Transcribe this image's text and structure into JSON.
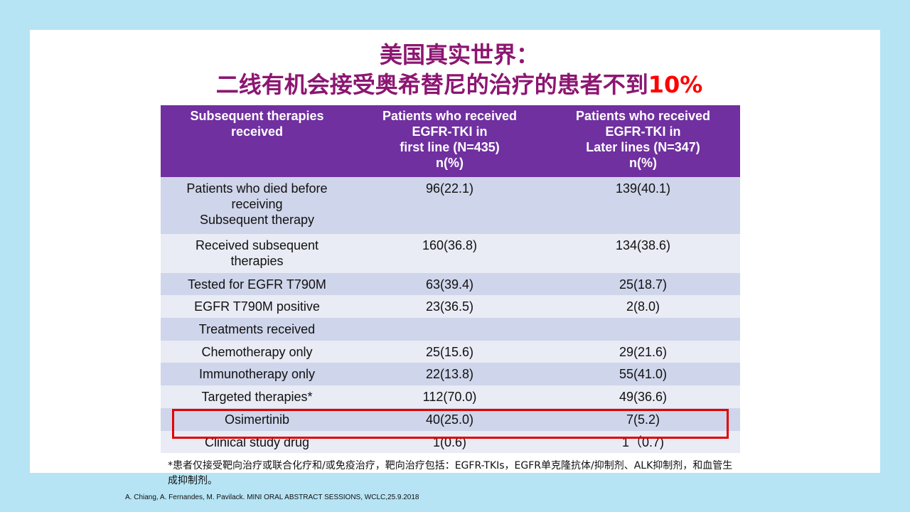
{
  "title": {
    "line1": "美国真实世界：",
    "line2": "二线有机会接受奥希替尼的治疗的患者不到",
    "highlight": "10%"
  },
  "table": {
    "header": [
      "Subsequent therapies\nreceived",
      "Patients who received\nEGFR-TKI in\nfirst line (N=435)\nn(%)",
      "Patients who received\nEGFR-TKI in\nLater lines (N=347)\nn(%)"
    ],
    "rows": [
      [
        "Patients who died before\nreceiving\nSubsequent therapy",
        "96(22.1)",
        "139(40.1)"
      ],
      [
        "Received subsequent\ntherapies",
        "160(36.8)",
        "134(38.6)"
      ],
      [
        "Tested for EGFR T790M",
        "63(39.4)",
        "25(18.7)"
      ],
      [
        "EGFR T790M positive",
        "23(36.5)",
        "2(8.0)"
      ],
      [
        "Treatments received",
        "",
        ""
      ],
      [
        "Chemotherapy only",
        "25(15.6)",
        "29(21.6)"
      ],
      [
        "Immunotherapy only",
        "22(13.8)",
        "55(41.0)"
      ],
      [
        "Targeted therapies*",
        "112(70.0)",
        "49(36.6)"
      ],
      [
        "Osimertinib",
        "40(25.0)",
        "7(5.2)"
      ],
      [
        "Clinical study drug",
        "1(0.6)",
        "1（0.7)"
      ]
    ]
  },
  "footnote": "*患者仅接受靶向治疗或联合化疗和/或免疫治疗，靶向治疗包括：EGFR-TKIs，EGFR单克隆抗体/抑制剂、ALK抑制剂，和血管生成抑制剂。",
  "citation": "A. Chiang, A. Fernandes, M. Pavilack. MINI ORAL ABSTRACT SESSIONS, WCLC,25.9.2018"
}
